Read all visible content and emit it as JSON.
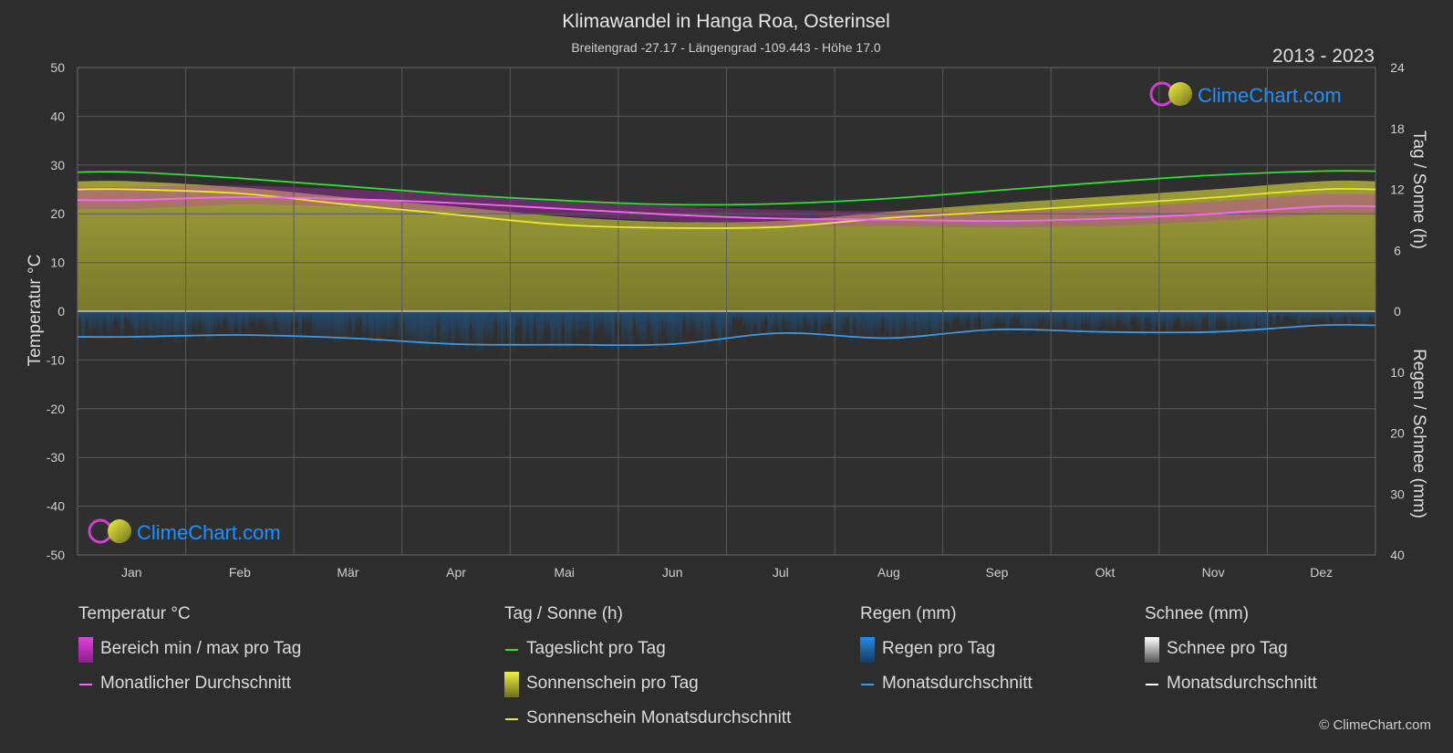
{
  "header": {
    "title": "Klimawandel in Hanga Roa, Osterinsel",
    "subtitle": "Breitengrad -27.17 - Längengrad -109.443 - Höhe 17.0",
    "year_range": "2013 - 2023",
    "watermark": "ClimeChart.com"
  },
  "colors": {
    "background": "#2d2d2d",
    "daylight": "#33dd33",
    "sunshine_avg": "#e8e82a",
    "sunshine_fill": "#8f8f2e",
    "temp_range": "#c832c8",
    "temp_avg": "#ff66ff",
    "rain": "#2a7fd4",
    "rain_avg": "#3a9ae8",
    "snow": "#ffffff",
    "brand_blue": "#1e90ff",
    "brand_magenta": "#d040d0"
  },
  "chart_data": {
    "type": "line",
    "categories": [
      "Jan",
      "Feb",
      "Mär",
      "Apr",
      "Mai",
      "Jun",
      "Jul",
      "Aug",
      "Sep",
      "Okt",
      "Nov",
      "Dez"
    ],
    "axes": {
      "left": {
        "label": "Temperatur °C",
        "min": -50,
        "max": 50,
        "ticks": [
          50,
          40,
          30,
          20,
          10,
          0,
          -10,
          -20,
          -30,
          -40,
          -50
        ]
      },
      "right_top": {
        "label": "Tag / Sonne (h)",
        "min": 0,
        "max": 24,
        "ticks": [
          24,
          18,
          12,
          6,
          0
        ]
      },
      "right_bottom": {
        "label": "Regen / Schnee (mm)",
        "min": 0,
        "max": 40,
        "ticks": [
          0,
          10,
          20,
          30,
          40
        ]
      }
    },
    "grid": true,
    "series": [
      {
        "name": "Tageslicht pro Tag",
        "unit": "h",
        "values": [
          13.7,
          13.1,
          12.3,
          11.5,
          10.9,
          10.5,
          10.6,
          11.1,
          11.9,
          12.7,
          13.4,
          13.8
        ]
      },
      {
        "name": "Sonnenschein Monatsdurchschnitt",
        "unit": "h",
        "values": [
          12.0,
          11.6,
          10.5,
          9.5,
          8.5,
          8.2,
          8.3,
          9.2,
          9.8,
          10.5,
          11.2,
          12.0
        ]
      },
      {
        "name": "Sonnenschein pro Tag",
        "unit": "h",
        "values": [
          12.8,
          12.2,
          11.2,
          10.3,
          9.3,
          8.8,
          8.9,
          9.8,
          10.6,
          11.3,
          12.0,
          12.8
        ]
      },
      {
        "name": "Monatlicher Durchschnitt",
        "unit": "°C",
        "values": [
          22.8,
          23.4,
          23.0,
          22.2,
          21.0,
          19.8,
          19.0,
          18.8,
          18.5,
          19.0,
          20.0,
          21.5
        ]
      },
      {
        "name": "Bereich min / max pro Tag",
        "unit": "°C",
        "min": [
          21.0,
          22.0,
          21.5,
          20.5,
          19.5,
          18.5,
          17.5,
          17.5,
          17.2,
          17.5,
          18.5,
          20.0
        ],
        "max": [
          25.5,
          25.8,
          25.0,
          24.0,
          22.8,
          21.5,
          20.8,
          20.5,
          20.5,
          21.0,
          22.5,
          24.0
        ]
      },
      {
        "name": "Monatsdurchschnitt",
        "unit": "mm",
        "values": [
          4.2,
          3.9,
          4.4,
          5.4,
          5.5,
          5.4,
          3.6,
          4.4,
          3.0,
          3.4,
          3.4,
          2.3
        ]
      }
    ]
  },
  "legend": {
    "groups": [
      {
        "title": "Temperatur °C",
        "items": [
          {
            "label": "Bereich min / max pro Tag",
            "swatch": "box",
            "color": "#c832c8",
            "icon": "temp-range-swatch"
          },
          {
            "label": "Monatlicher Durchschnitt",
            "swatch": "line",
            "color": "#ff66ff",
            "icon": "temp-avg-line"
          }
        ]
      },
      {
        "title": "Tag / Sonne (h)",
        "items": [
          {
            "label": "Tageslicht pro Tag",
            "swatch": "line",
            "color": "#33dd33",
            "icon": "daylight-line"
          },
          {
            "label": "Sonnenschein pro Tag",
            "swatch": "box",
            "color": "#d8d830",
            "icon": "sunshine-swatch"
          },
          {
            "label": "Sonnenschein Monatsdurchschnitt",
            "swatch": "line",
            "color": "#e8e82a",
            "icon": "sunshine-avg-line"
          }
        ]
      },
      {
        "title": "Regen (mm)",
        "items": [
          {
            "label": "Regen pro Tag",
            "swatch": "box",
            "color": "#2a7fd4",
            "icon": "rain-swatch"
          },
          {
            "label": "Monatsdurchschnitt",
            "swatch": "line",
            "color": "#3a9ae8",
            "icon": "rain-avg-line"
          }
        ]
      },
      {
        "title": "Schnee (mm)",
        "items": [
          {
            "label": "Schnee pro Tag",
            "swatch": "box",
            "color": "#ffffff",
            "icon": "snow-swatch"
          },
          {
            "label": "Monatsdurchschnitt",
            "swatch": "line",
            "color": "#ffffff",
            "icon": "snow-avg-line"
          }
        ]
      }
    ]
  },
  "footer": {
    "copyright": "© ClimeChart.com"
  }
}
